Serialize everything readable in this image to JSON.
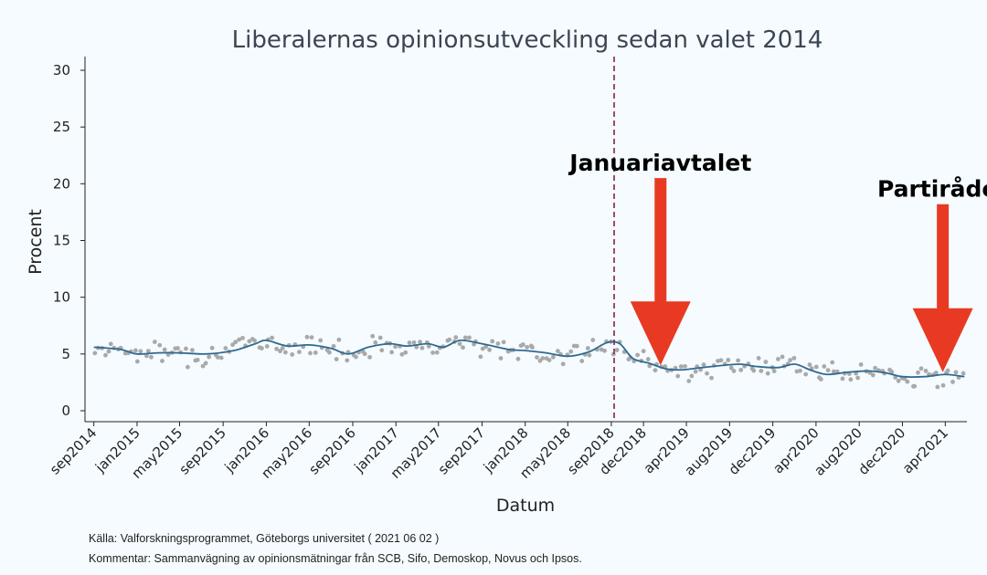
{
  "chart_data": {
    "type": "scatter",
    "title": "Liberalernas opinionsutveckling sedan valet 2014",
    "xlabel": "Datum",
    "ylabel": "Procent",
    "ylim": [
      0,
      30
    ],
    "yticks": [
      0,
      5,
      10,
      15,
      20,
      25,
      30
    ],
    "xlim": [
      "2014-08-07",
      "2021-06-01"
    ],
    "xticks": [
      {
        "date": "2014-09-01",
        "label": "sep2014"
      },
      {
        "date": "2015-01-01",
        "label": "jan2015"
      },
      {
        "date": "2015-05-01",
        "label": "may2015"
      },
      {
        "date": "2015-09-01",
        "label": "sep2015"
      },
      {
        "date": "2016-01-01",
        "label": "jan2016"
      },
      {
        "date": "2016-05-01",
        "label": "may2016"
      },
      {
        "date": "2016-09-01",
        "label": "sep2016"
      },
      {
        "date": "2017-01-01",
        "label": "jan2017"
      },
      {
        "date": "2017-05-01",
        "label": "may2017"
      },
      {
        "date": "2017-09-01",
        "label": "sep2017"
      },
      {
        "date": "2018-01-01",
        "label": "jan2018"
      },
      {
        "date": "2018-05-01",
        "label": "may2018"
      },
      {
        "date": "2018-09-01",
        "label": "sep2018"
      },
      {
        "date": "2018-12-01",
        "label": "dec2018"
      },
      {
        "date": "2019-04-01",
        "label": "apr2019"
      },
      {
        "date": "2019-08-01",
        "label": "aug2019"
      },
      {
        "date": "2019-12-01",
        "label": "dec2019"
      },
      {
        "date": "2020-04-01",
        "label": "apr2020"
      },
      {
        "date": "2020-08-01",
        "label": "aug2020"
      },
      {
        "date": "2020-12-01",
        "label": "dec2020"
      },
      {
        "date": "2021-04-01",
        "label": "apr2021"
      }
    ],
    "grid": false,
    "election_line": {
      "date": "2018-09-09",
      "color": "#8a2145"
    },
    "trend": {
      "color": "#2f6a92",
      "points": [
        [
          "2014-09-01",
          5.6
        ],
        [
          "2014-11-15",
          5.4
        ],
        [
          "2015-01-01",
          5.0
        ],
        [
          "2015-03-01",
          5.1
        ],
        [
          "2015-05-01",
          5.1
        ],
        [
          "2015-07-15",
          5.0
        ],
        [
          "2015-10-01",
          5.3
        ],
        [
          "2015-12-01",
          5.9
        ],
        [
          "2016-01-01",
          6.2
        ],
        [
          "2016-03-01",
          5.7
        ],
        [
          "2016-05-01",
          5.8
        ],
        [
          "2016-07-01",
          5.5
        ],
        [
          "2016-08-20",
          5.0
        ],
        [
          "2016-10-15",
          5.6
        ],
        [
          "2016-12-15",
          5.9
        ],
        [
          "2017-02-01",
          5.7
        ],
        [
          "2017-04-01",
          5.9
        ],
        [
          "2017-05-15",
          5.6
        ],
        [
          "2017-07-01",
          6.2
        ],
        [
          "2017-09-01",
          5.9
        ],
        [
          "2017-11-15",
          5.4
        ],
        [
          "2018-01-01",
          5.3
        ],
        [
          "2018-03-01",
          5.1
        ],
        [
          "2018-05-01",
          4.8
        ],
        [
          "2018-07-01",
          5.2
        ],
        [
          "2018-08-20",
          6.0
        ],
        [
          "2018-09-25",
          5.9
        ],
        [
          "2018-11-01",
          4.6
        ],
        [
          "2018-12-15",
          4.2
        ],
        [
          "2019-02-01",
          3.7
        ],
        [
          "2019-03-15",
          3.6
        ],
        [
          "2019-05-15",
          3.8
        ],
        [
          "2019-07-15",
          4.0
        ],
        [
          "2019-09-01",
          4.1
        ],
        [
          "2019-10-15",
          3.9
        ],
        [
          "2019-12-15",
          3.8
        ],
        [
          "2020-02-01",
          4.1
        ],
        [
          "2020-03-15",
          3.6
        ],
        [
          "2020-05-01",
          3.2
        ],
        [
          "2020-07-01",
          3.4
        ],
        [
          "2020-09-01",
          3.5
        ],
        [
          "2020-10-20",
          3.3
        ],
        [
          "2020-12-01",
          3.0
        ],
        [
          "2021-02-01",
          3.0
        ],
        [
          "2021-04-01",
          3.2
        ],
        [
          "2021-05-25",
          3.0
        ]
      ]
    },
    "points_color": "#a9a9a9",
    "points_note": "individual polls scattered around the trend (~0.5–1.2 pp)",
    "annotations": [
      {
        "label": "Januariavtalet",
        "date": "2019-01-18",
        "arrow_from": 20.5,
        "arrow_to": 4.0,
        "color": "#e83a22"
      },
      {
        "label": "Partirådet",
        "date": "2021-03-25",
        "arrow_from": 18.2,
        "arrow_to": 3.4,
        "color": "#e83a22"
      }
    ]
  },
  "footer": {
    "source": "Källa: Valforskningsprogrammet, Göteborgs universitet ( 2021 06 02 )",
    "comment": "Kommentar: Sammanvägning av opinionsmätningar från SCB, Sifo, Demoskop, Novus och Ipsos."
  }
}
